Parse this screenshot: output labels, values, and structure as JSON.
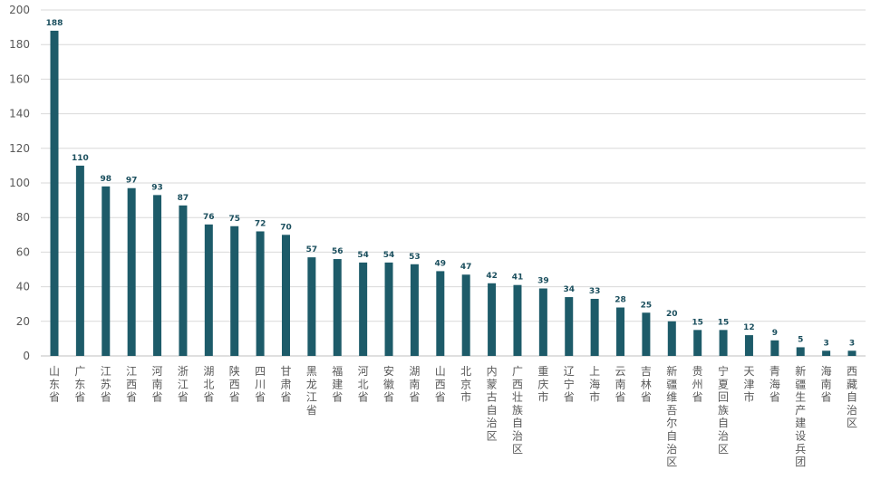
{
  "chart_data": {
    "type": "bar",
    "title": "",
    "xlabel": "",
    "ylabel": "",
    "ylim": [
      0,
      200
    ],
    "yticks": [
      0,
      20,
      40,
      60,
      80,
      100,
      120,
      140,
      160,
      180,
      200
    ],
    "grid": true,
    "legend": "none",
    "bar_color": "#1d5b69",
    "label_color": "#1b4f5e",
    "categories": [
      "山东省",
      "广东省",
      "江苏省",
      "江西省",
      "河南省",
      "浙江省",
      "湖北省",
      "陕西省",
      "四川省",
      "甘肃省",
      "黑龙江省",
      "福建省",
      "河北省",
      "安徽省",
      "湖南省",
      "山西省",
      "北京市",
      "内蒙古自治区",
      "广西壮族自治区",
      "重庆市",
      "辽宁省",
      "上海市",
      "云南省",
      "吉林省",
      "新疆维吾尔自治区",
      "贵州省",
      "宁夏回族自治区",
      "天津市",
      "青海省",
      "新疆生产建设兵团",
      "海南省",
      "西藏自治区"
    ],
    "values": [
      188,
      110,
      98,
      97,
      93,
      87,
      76,
      75,
      72,
      70,
      57,
      56,
      54,
      54,
      53,
      49,
      47,
      42,
      41,
      39,
      34,
      33,
      28,
      25,
      20,
      15,
      15,
      12,
      9,
      5,
      3,
      3
    ]
  }
}
